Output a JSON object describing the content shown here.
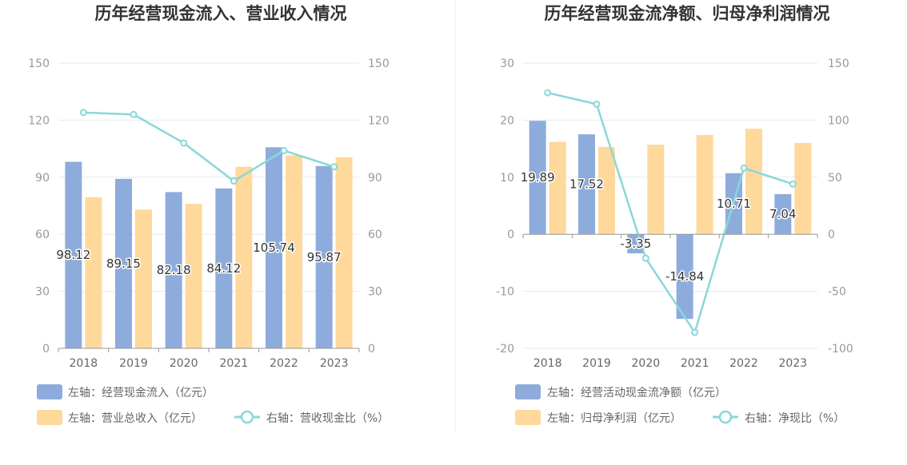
{
  "colors": {
    "bar_left": "#8eacdb",
    "bar_right": "#fed99b",
    "line": "#8ad7da",
    "grid": "#e6e9f0",
    "axis": "#999999"
  },
  "chart_data": [
    {
      "type": "bar",
      "title": "历年经营现金流入、营业收入情况",
      "categories": [
        "2018",
        "2019",
        "2020",
        "2021",
        "2022",
        "2023"
      ],
      "left_axis": {
        "ylim": [
          0,
          150
        ],
        "ticks": [
          "150",
          "120",
          "90",
          "60",
          "30",
          "0"
        ]
      },
      "right_axis": {
        "ylim": [
          0,
          150
        ],
        "ticks": [
          "150",
          "120",
          "90",
          "60",
          "30",
          "0"
        ]
      },
      "series": [
        {
          "name": "左轴：经营现金流入（亿元）",
          "axis": "left",
          "kind": "bar",
          "values": [
            98.12,
            89.15,
            82.18,
            84.12,
            105.74,
            95.87
          ],
          "labels": [
            "98.12",
            "89.15",
            "82.18",
            "84.12",
            "105.74",
            "95.87"
          ]
        },
        {
          "name": "左轴：营业总收入（亿元）",
          "axis": "left",
          "kind": "bar",
          "values": [
            79.5,
            73,
            76,
            95.5,
            101.5,
            100.5
          ]
        },
        {
          "name": "右轴：营收现金比（%）",
          "axis": "right",
          "kind": "line",
          "values": [
            124,
            123,
            108,
            88,
            104,
            95.5
          ]
        }
      ],
      "legend_position": "bottom-left"
    },
    {
      "type": "bar",
      "title": "历年经营现金流净额、归母净利润情况",
      "categories": [
        "2018",
        "2019",
        "2020",
        "2021",
        "2022",
        "2023"
      ],
      "left_axis": {
        "ylim": [
          -20,
          30
        ],
        "ticks": [
          "30",
          "20",
          "10",
          "0",
          "-10",
          "-20"
        ]
      },
      "right_axis": {
        "ylim": [
          -100,
          150
        ],
        "ticks": [
          "150",
          "100",
          "50",
          "0",
          "-50",
          "-100"
        ]
      },
      "series": [
        {
          "name": "左轴：经营活动现金流净额（亿元）",
          "axis": "left",
          "kind": "bar",
          "values": [
            19.89,
            17.52,
            -3.35,
            -14.84,
            10.71,
            7.04
          ],
          "labels": [
            "19.89",
            "17.52",
            "-3.35",
            "-14.84",
            "10.71",
            "7.04"
          ]
        },
        {
          "name": "左轴：归母净利润（亿元）",
          "axis": "left",
          "kind": "bar",
          "values": [
            16.2,
            15.3,
            15.7,
            17.4,
            18.5,
            16.0
          ]
        },
        {
          "name": "右轴：净现比（%）",
          "axis": "right",
          "kind": "line",
          "values": [
            124,
            114,
            -21,
            -86,
            58,
            44
          ]
        }
      ],
      "legend_position": "bottom-left"
    }
  ]
}
